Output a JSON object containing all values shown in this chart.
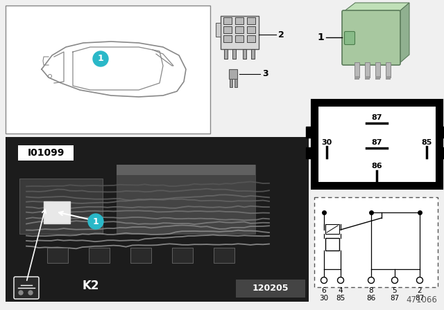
{
  "doc_number": "471066",
  "photo_number": "120205",
  "label_code": "I01099",
  "k_label": "K2",
  "background_color": "#f0f0f0",
  "relay_green": "#a8c8a0",
  "teal_color": "#2ab8c8",
  "white": "#ffffff",
  "black": "#000000",
  "dark_gray": "#1a1a1a",
  "mid_gray": "#555555",
  "light_gray": "#cccccc"
}
